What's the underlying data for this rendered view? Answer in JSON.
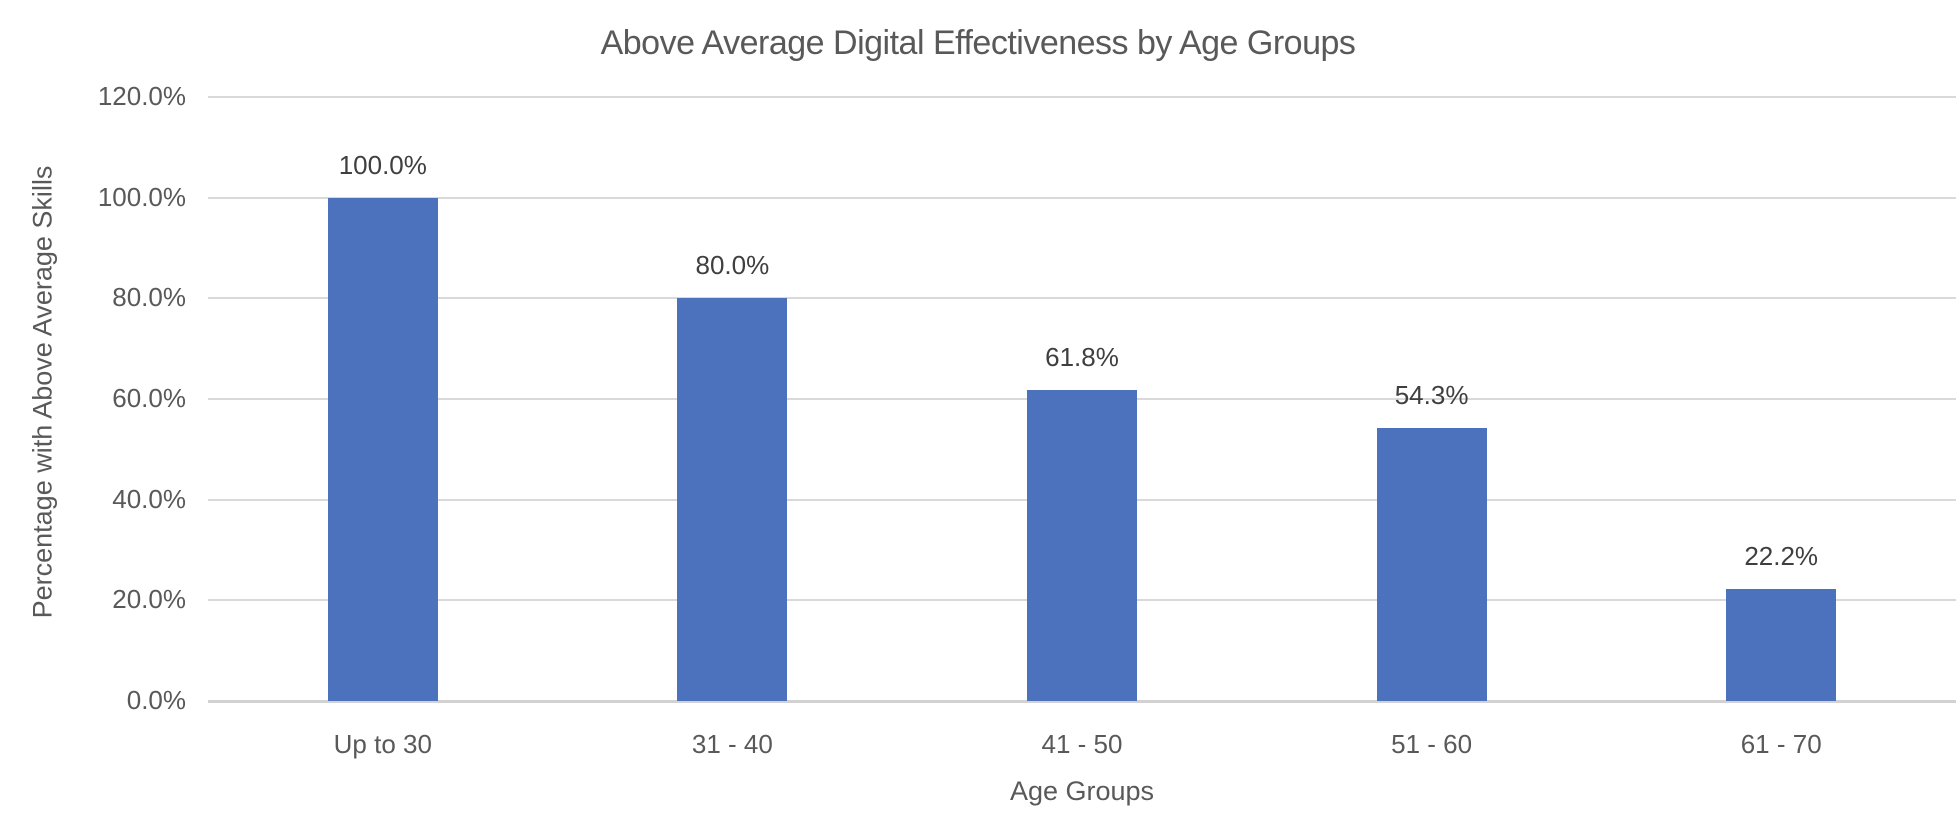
{
  "chart_data": {
    "type": "bar",
    "title": "Above Average Digital Effectiveness by Age Groups",
    "xlabel": "Age Groups",
    "ylabel": "Percentage with Above Average Skills",
    "categories": [
      "Up to 30",
      "31 - 40",
      "41 - 50",
      "51 - 60",
      "61 - 70"
    ],
    "values": [
      100.0,
      80.0,
      61.8,
      54.3,
      22.2
    ],
    "value_labels": [
      "100.0%",
      "80.0%",
      "61.8%",
      "54.3%",
      "22.2%"
    ],
    "ytick_labels": [
      "0.0%",
      "20.0%",
      "40.0%",
      "60.0%",
      "80.0%",
      "100.0%",
      "120.0%"
    ],
    "ytick_values": [
      0,
      20,
      40,
      60,
      80,
      100,
      120
    ],
    "ylim": [
      0,
      120
    ],
    "grid": true,
    "legend": "none",
    "colors": {
      "bar": "#4C72BE",
      "gridline": "#D9D9D9",
      "axis_line": "#D2D2D2",
      "text": "#595959",
      "value_label": "#3F3F3F",
      "background": "#FFFFFF"
    }
  }
}
